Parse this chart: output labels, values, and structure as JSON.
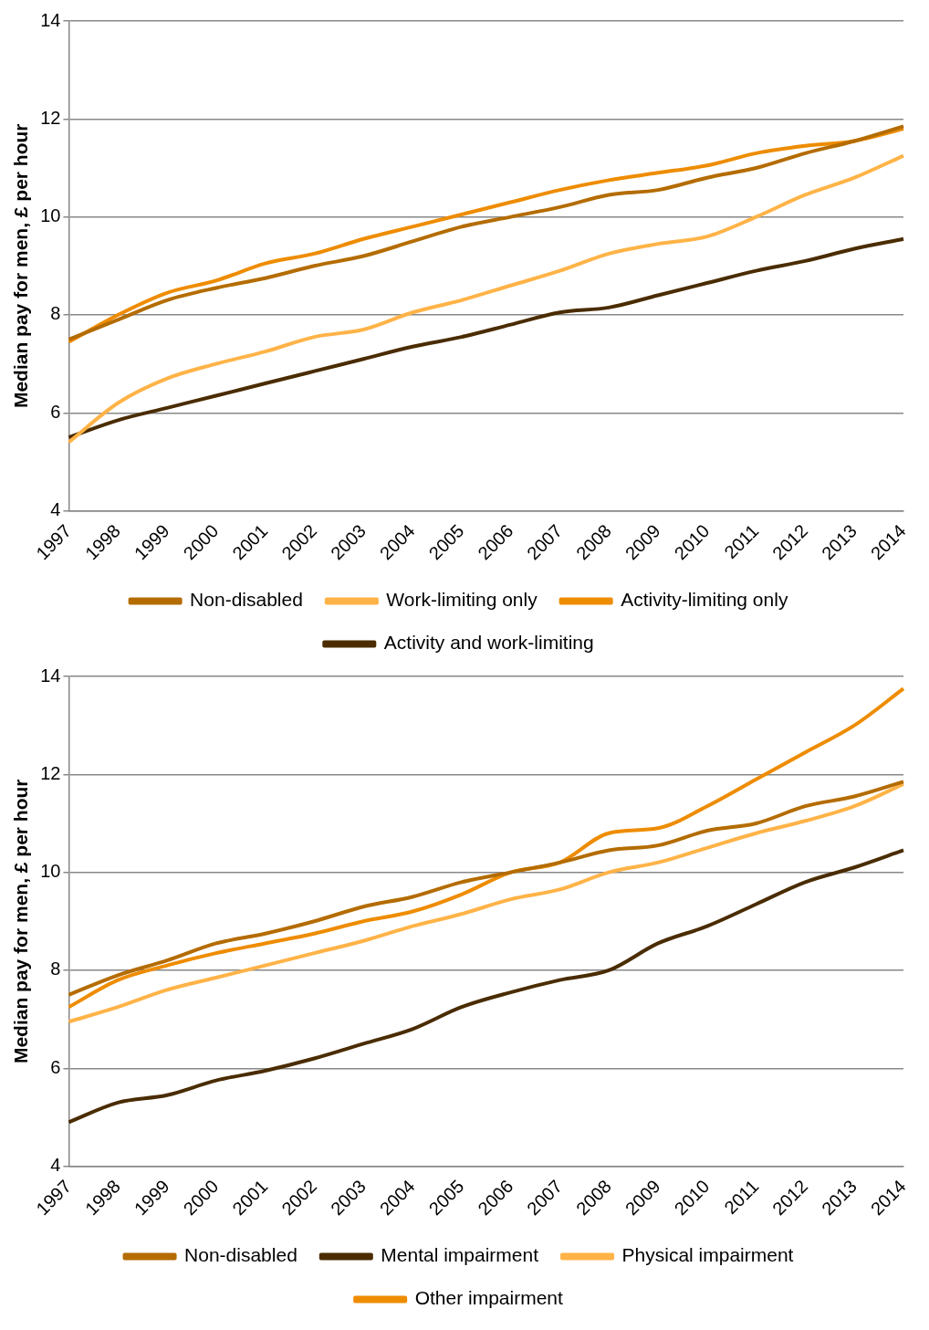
{
  "chart_data": [
    {
      "type": "line",
      "ylabel": "Median pay for men, £ per hour",
      "categories": [
        "1997",
        "1998",
        "1999",
        "2000",
        "2001",
        "2002",
        "2003",
        "2004",
        "2005",
        "2006",
        "2007",
        "2008",
        "2009",
        "2010",
        "2011",
        "2012",
        "2013",
        "2014"
      ],
      "ylim": [
        4,
        14
      ],
      "yticks": [
        4,
        6,
        8,
        10,
        12,
        14
      ],
      "grid": "y",
      "legend": "bottom",
      "marker": "none",
      "line_style": "solid",
      "series": [
        {
          "name": "Non-disabled",
          "color": "#b46c00",
          "values": [
            7.5,
            7.9,
            8.3,
            8.55,
            8.75,
            9.0,
            9.2,
            9.5,
            9.8,
            10.0,
            10.2,
            10.45,
            10.55,
            10.8,
            11.0,
            11.3,
            11.55,
            11.85
          ]
        },
        {
          "name": "Work-limiting only",
          "color": "#ffb347",
          "values": [
            5.4,
            6.2,
            6.7,
            7.0,
            7.25,
            7.55,
            7.7,
            8.05,
            8.3,
            8.6,
            8.9,
            9.25,
            9.45,
            9.6,
            10.0,
            10.45,
            10.8,
            11.25
          ]
        },
        {
          "name": "Activity-limiting only",
          "color": "#ee8c00",
          "values": [
            7.45,
            8.0,
            8.45,
            8.7,
            9.05,
            9.25,
            9.55,
            9.8,
            10.05,
            10.3,
            10.55,
            10.75,
            10.9,
            11.05,
            11.3,
            11.45,
            11.55,
            11.8
          ]
        },
        {
          "name": "Activity and work-limiting",
          "color": "#4a2c00",
          "values": [
            5.5,
            5.85,
            6.1,
            6.35,
            6.6,
            6.85,
            7.1,
            7.35,
            7.55,
            7.8,
            8.05,
            8.15,
            8.4,
            8.65,
            8.9,
            9.1,
            9.35,
            9.55
          ]
        }
      ]
    },
    {
      "type": "line",
      "ylabel": "Median pay for men, £ per hour",
      "categories": [
        "1997",
        "1998",
        "1999",
        "2000",
        "2001",
        "2002",
        "2003",
        "2004",
        "2005",
        "2006",
        "2007",
        "2008",
        "2009",
        "2010",
        "2011",
        "2012",
        "2013",
        "2014"
      ],
      "ylim": [
        4,
        14
      ],
      "yticks": [
        4,
        6,
        8,
        10,
        12,
        14
      ],
      "grid": "y",
      "legend": "bottom",
      "marker": "none",
      "line_style": "solid",
      "series": [
        {
          "name": "Non-disabled",
          "color": "#b46c00",
          "values": [
            7.5,
            7.9,
            8.2,
            8.55,
            8.75,
            9.0,
            9.3,
            9.5,
            9.8,
            10.0,
            10.2,
            10.45,
            10.55,
            10.85,
            11.0,
            11.35,
            11.55,
            11.85
          ]
        },
        {
          "name": "Mental impairment",
          "color": "#4a2c00",
          "values": [
            4.9,
            5.3,
            5.45,
            5.75,
            5.95,
            6.2,
            6.5,
            6.8,
            7.25,
            7.55,
            7.8,
            8.0,
            8.55,
            8.9,
            9.35,
            9.8,
            10.1,
            10.45
          ]
        },
        {
          "name": "Physical impairment",
          "color": "#ffb347",
          "values": [
            6.95,
            7.25,
            7.6,
            7.85,
            8.1,
            8.35,
            8.6,
            8.9,
            9.15,
            9.45,
            9.65,
            10.0,
            10.2,
            10.5,
            10.8,
            11.05,
            11.35,
            11.8
          ]
        },
        {
          "name": "Other impairment",
          "color": "#ee8c00",
          "values": [
            7.25,
            7.8,
            8.1,
            8.35,
            8.55,
            8.75,
            9.0,
            9.2,
            9.55,
            10.0,
            10.2,
            10.8,
            10.9,
            11.35,
            11.9,
            12.45,
            13.0,
            13.75
          ]
        }
      ]
    }
  ]
}
